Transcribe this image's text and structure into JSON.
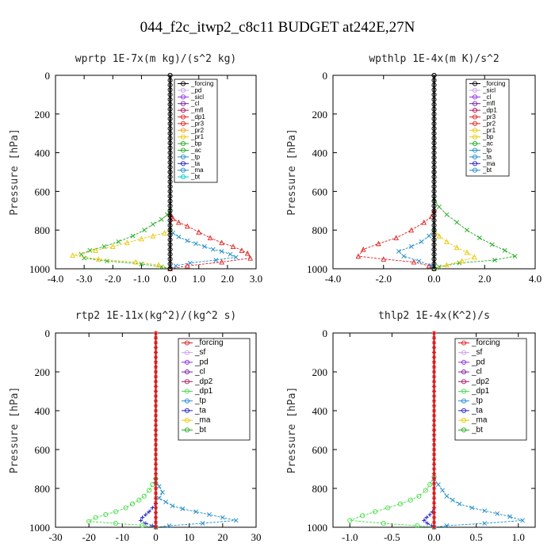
{
  "figure_title": "044_f2c_itwp2_c8c11  BUDGET at242E,27N",
  "chart_data": [
    {
      "type": "line",
      "title": "wprtp  1E-7x(m kg)/(s^2 kg)",
      "ylabel": "Pressure [hPa]",
      "xlim": [
        -4.0,
        3.0
      ],
      "ylim": [
        1000,
        0
      ],
      "xticks": [
        "-4.0",
        "-3.0",
        "-2.0",
        "-1.0",
        "0.0",
        "1.0",
        "2.0",
        "3.0"
      ],
      "yticks": [
        "0",
        "200",
        "400",
        "600",
        "800",
        "1000"
      ],
      "legend": [
        "_forcing",
        "_pd",
        "_sicl",
        "_cl",
        "_mfl",
        "_dp1",
        "_pr3",
        "_pr2",
        "_pr1",
        "_bp",
        "_ac",
        "_tp",
        "_ta",
        "_ma",
        "_bt"
      ],
      "series": [
        {
          "name": "_ac",
          "color": "#22aa22",
          "marker": "x",
          "x": [
            0,
            -0.1,
            -0.3,
            -0.6,
            -0.9,
            -1.3,
            -1.8,
            -2.3,
            -2.8,
            -3.1,
            -3.0,
            -2.2,
            -1.0,
            -0.3,
            0
          ],
          "y": [
            700,
            720,
            745,
            770,
            800,
            830,
            860,
            885,
            905,
            925,
            945,
            960,
            975,
            990,
            1000
          ]
        },
        {
          "name": "_pr1",
          "color": "#e8c800",
          "marker": "triangle",
          "x": [
            0,
            -0.2,
            -0.6,
            -1.0,
            -1.5,
            -2.0,
            -2.6,
            -3.4,
            -2.5,
            -1.2,
            -0.4,
            0
          ],
          "y": [
            800,
            815,
            830,
            845,
            865,
            885,
            905,
            930,
            950,
            965,
            980,
            1000
          ]
        },
        {
          "name": "_tp",
          "color": "#1e8cc8",
          "marker": "x",
          "x": [
            0,
            0.1,
            0.3,
            0.6,
            0.9,
            1.2,
            1.5,
            1.8,
            2.1,
            2.3,
            1.6,
            0.7,
            0.2,
            0
          ],
          "y": [
            800,
            815,
            835,
            855,
            870,
            885,
            900,
            910,
            925,
            940,
            955,
            970,
            985,
            1000
          ]
        },
        {
          "name": "_pr3",
          "color": "#e02020",
          "marker": "triangle",
          "x": [
            0,
            0.1,
            0.3,
            0.6,
            1.0,
            1.4,
            1.8,
            2.2,
            2.5,
            2.7,
            2.8,
            1.8,
            0.6,
            0
          ],
          "y": [
            720,
            740,
            760,
            780,
            810,
            840,
            865,
            885,
            905,
            920,
            945,
            965,
            985,
            1000
          ]
        },
        {
          "name": "_forcing",
          "color": "#000000",
          "marker": "circle",
          "x": [
            0,
            0,
            0
          ],
          "y": [
            0,
            500,
            1000
          ]
        }
      ]
    },
    {
      "type": "line",
      "title": "wpthlp  1E-4x(m K)/s^2",
      "ylabel": "Pressure [hPa]",
      "xlim": [
        -4.0,
        4.0
      ],
      "ylim": [
        1000,
        0
      ],
      "xticks": [
        "-4.0",
        "-2.0",
        "0.0",
        "2.0",
        "4.0"
      ],
      "yticks": [
        "0",
        "200",
        "400",
        "600",
        "800",
        "1000"
      ],
      "legend": [
        "_forcing",
        "_sicl",
        "_cl",
        "_mfl",
        "_dp1",
        "_pr3",
        "_pr2",
        "_pr1",
        "_bp",
        "_ac",
        "_tp",
        "_ta",
        "_ma",
        "_bt"
      ],
      "series": [
        {
          "name": "_ac",
          "color": "#22aa22",
          "marker": "x",
          "x": [
            0,
            0.2,
            0.5,
            0.9,
            1.3,
            1.8,
            2.3,
            2.8,
            3.2,
            2.4,
            1.0,
            0.2,
            0
          ],
          "y": [
            640,
            680,
            720,
            760,
            800,
            840,
            875,
            905,
            935,
            955,
            970,
            990,
            1000
          ]
        },
        {
          "name": "_pr3",
          "color": "#e02020",
          "marker": "triangle",
          "x": [
            0,
            -0.1,
            -0.4,
            -0.9,
            -1.5,
            -2.2,
            -2.8,
            -3.0,
            -2.0,
            -0.8,
            -0.2,
            0
          ],
          "y": [
            700,
            730,
            760,
            800,
            840,
            870,
            900,
            935,
            950,
            965,
            985,
            1000
          ]
        },
        {
          "name": "_pr1",
          "color": "#e8c800",
          "marker": "triangle",
          "x": [
            0,
            0.2,
            0.5,
            0.9,
            1.3,
            1.6,
            1.1,
            0.5,
            0
          ],
          "y": [
            800,
            830,
            860,
            890,
            915,
            940,
            960,
            980,
            1000
          ]
        },
        {
          "name": "_tp",
          "color": "#1e8cc8",
          "marker": "x",
          "x": [
            0,
            -0.2,
            -0.5,
            -0.9,
            -1.4,
            -1.2,
            -0.6,
            -0.1,
            0
          ],
          "y": [
            800,
            830,
            860,
            885,
            910,
            935,
            960,
            985,
            1000
          ]
        },
        {
          "name": "_forcing",
          "color": "#000000",
          "marker": "circle",
          "x": [
            0,
            0,
            0
          ],
          "y": [
            0,
            500,
            1000
          ]
        }
      ]
    },
    {
      "type": "line",
      "title": "rtp2  1E-11x(kg^2)/(kg^2 s)",
      "ylabel": "Pressure [hPa]",
      "xlim": [
        -30,
        30
      ],
      "ylim": [
        1000,
        0
      ],
      "xticks": [
        "-30",
        "-20",
        "-10",
        "0",
        "10",
        "20",
        "30"
      ],
      "yticks": [
        "0",
        "200",
        "400",
        "600",
        "800",
        "1000"
      ],
      "legend": [
        "_forcing",
        "_sf",
        "_pd",
        "_cl",
        "_dp2",
        "_dp1",
        "_tp",
        "_ta",
        "_ma",
        "_bt"
      ],
      "series": [
        {
          "name": "_dp1",
          "color": "#44dd44",
          "marker": "circle",
          "x": [
            0,
            -1,
            -2,
            -3.5,
            -5,
            -7,
            -9,
            -12,
            -15,
            -18,
            -20,
            -12,
            -4,
            0
          ],
          "y": [
            750,
            780,
            810,
            840,
            860,
            880,
            900,
            920,
            935,
            950,
            970,
            980,
            990,
            1000
          ]
        },
        {
          "name": "_tp",
          "color": "#1e8cc8",
          "marker": "x",
          "x": [
            0,
            1,
            2,
            1,
            3,
            5,
            8,
            12,
            16,
            20,
            24,
            14,
            4,
            0
          ],
          "y": [
            760,
            790,
            820,
            850,
            870,
            890,
            905,
            920,
            935,
            950,
            965,
            980,
            992,
            1000
          ]
        },
        {
          "name": "_ta",
          "color": "#2020c8",
          "marker": "plus",
          "x": [
            0,
            -1,
            -2,
            -3,
            -4,
            -4.5,
            -3,
            -1,
            0
          ],
          "y": [
            880,
            900,
            920,
            935,
            950,
            965,
            980,
            992,
            1000
          ]
        },
        {
          "name": "_forcing",
          "color": "#d81a1a",
          "marker": "star",
          "x": [
            0,
            0,
            0
          ],
          "y": [
            0,
            500,
            1000
          ]
        }
      ]
    },
    {
      "type": "line",
      "title": "thlp2  1E-4x(K^2)/s",
      "ylabel": "Pressure [hPa]",
      "xlim": [
        -1.2,
        1.2
      ],
      "ylim": [
        1000,
        0
      ],
      "xticks": [
        "-1.0",
        "-0.5",
        "0.0",
        "0.5",
        "1.0"
      ],
      "yticks": [
        "0",
        "200",
        "400",
        "600",
        "800",
        "1000"
      ],
      "legend": [
        "_forcing",
        "_sf",
        "_pd",
        "_cl",
        "_dp2",
        "_dp1",
        "_tp",
        "_ta",
        "_ma",
        "_bt"
      ],
      "series": [
        {
          "name": "_dp1",
          "color": "#44dd44",
          "marker": "circle",
          "x": [
            0,
            -0.05,
            -0.1,
            -0.18,
            -0.28,
            -0.4,
            -0.55,
            -0.7,
            -0.85,
            -1.0,
            -0.6,
            -0.2,
            0
          ],
          "y": [
            740,
            780,
            810,
            840,
            860,
            880,
            900,
            920,
            940,
            965,
            980,
            992,
            1000
          ]
        },
        {
          "name": "_tp",
          "color": "#1e8cc8",
          "marker": "x",
          "x": [
            0,
            0.05,
            0.1,
            0.15,
            0.22,
            0.3,
            0.45,
            0.6,
            0.75,
            0.9,
            1.05,
            0.6,
            0.15,
            0
          ],
          "y": [
            750,
            780,
            810,
            840,
            860,
            880,
            900,
            915,
            930,
            945,
            965,
            980,
            992,
            1000
          ]
        },
        {
          "name": "_ta",
          "color": "#2020c8",
          "marker": "plus",
          "x": [
            0,
            -0.02,
            -0.05,
            -0.09,
            -0.12,
            -0.08,
            -0.03,
            0
          ],
          "y": [
            900,
            920,
            935,
            950,
            965,
            980,
            992,
            1000
          ]
        },
        {
          "name": "_forcing",
          "color": "#d81a1a",
          "marker": "star",
          "x": [
            0,
            0,
            0
          ],
          "y": [
            0,
            500,
            1000
          ]
        }
      ]
    }
  ]
}
